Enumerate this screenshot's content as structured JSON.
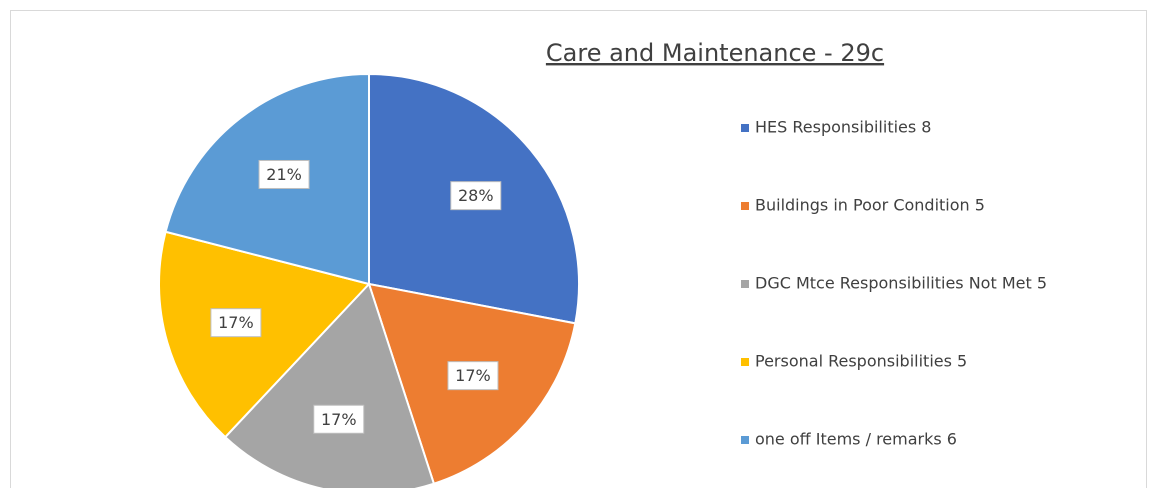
{
  "chart_data": {
    "type": "pie",
    "title": "Care and Maintenance - 29c",
    "categories": [
      "HES Responsibilities  8",
      "Buildings in Poor Condition 5",
      "DGC Mtce Responsibilities Not Met 5",
      "Personal Responsibilities 5",
      "one off Items / remarks 6"
    ],
    "values": [
      28,
      17,
      17,
      17,
      21
    ],
    "value_labels": [
      "28%",
      "17%",
      "17%",
      "17%",
      "21%"
    ],
    "colors": [
      "#4472c4",
      "#ed7d31",
      "#a5a5a5",
      "#ffc000",
      "#5b9bd5"
    ],
    "legend": "right"
  }
}
